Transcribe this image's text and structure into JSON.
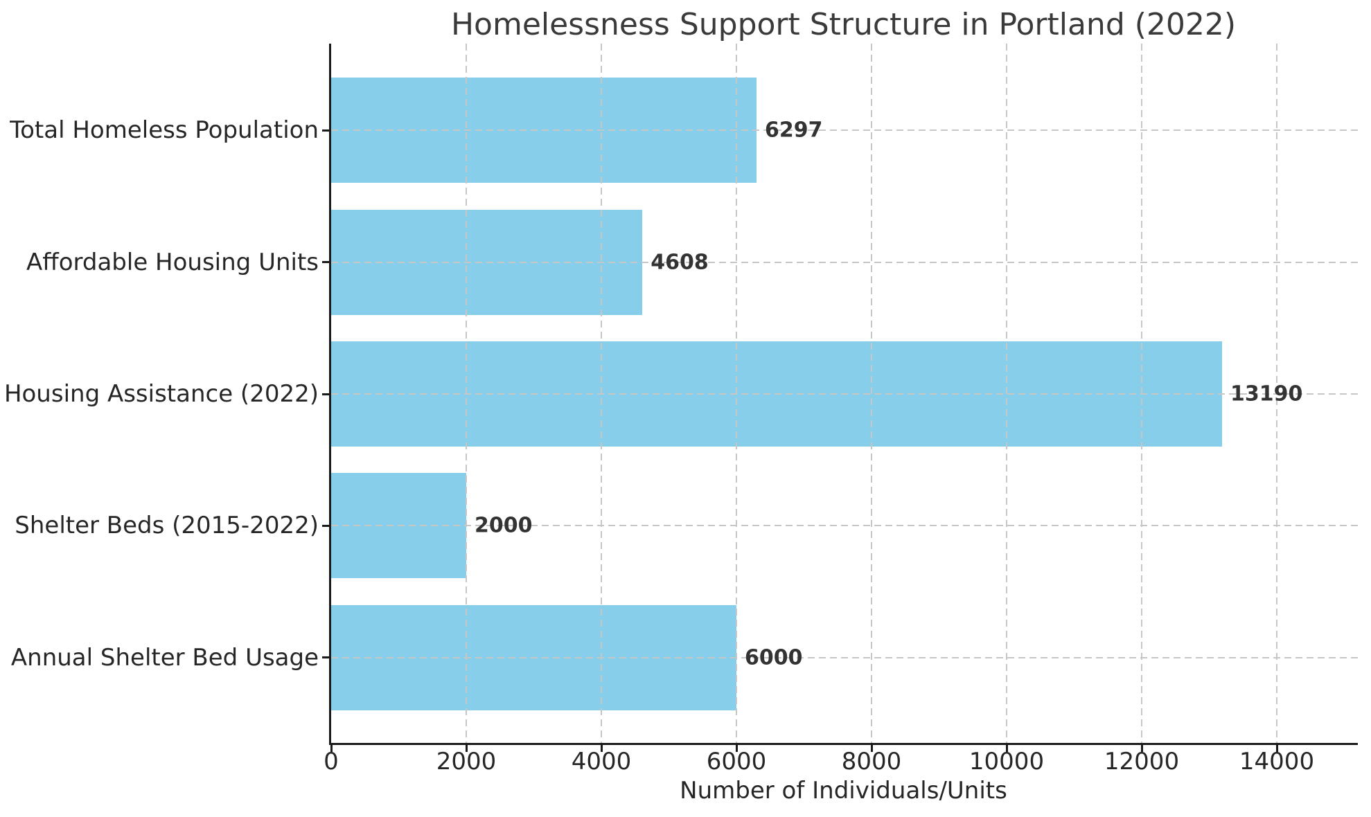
{
  "chart_data": {
    "type": "bar",
    "orientation": "horizontal",
    "title": "Homelessness Support Structure in Portland (2022)",
    "xlabel": "Number of Individuals/Units",
    "ylabel": "",
    "categories": [
      "Total Homeless Population",
      "Affordable Housing Units",
      "Housing Assistance (2022)",
      "Shelter Beds (2015-2022)",
      "Annual Shelter Bed Usage"
    ],
    "values": [
      6297,
      4608,
      13190,
      2000,
      6000
    ],
    "value_labels": [
      "6297",
      "4608",
      "13190",
      "2000",
      "6000"
    ],
    "xlim": [
      0,
      15200
    ],
    "xticks": [
      0,
      2000,
      4000,
      6000,
      8000,
      10000,
      12000,
      14000
    ],
    "xtick_labels": [
      "0",
      "2000",
      "4000",
      "6000",
      "8000",
      "10000",
      "12000",
      "14000"
    ],
    "grid": "dashed vertical and horizontal gridlines, drawn above bars",
    "legend_position": "none",
    "bar_color": "#87CEEB",
    "grid_color": "#c6c6c6",
    "axis_color": "#1a1a1a",
    "tick_label_color": "#262626",
    "title_color": "#3a3a3a",
    "value_label_color": "#333333"
  }
}
